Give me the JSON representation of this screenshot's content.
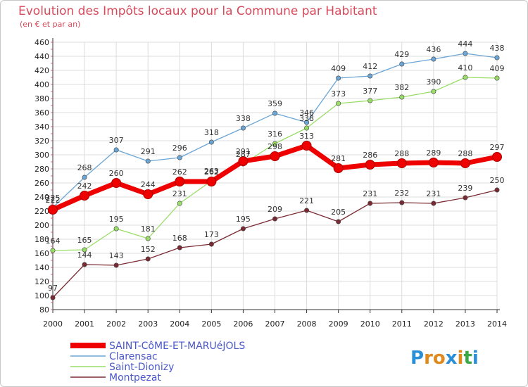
{
  "header": {
    "title": "Evolution des Impôts locaux pour la Commune par Habitant",
    "subtitle": "(en € et par an)"
  },
  "logo": {
    "text": "Proxiti",
    "letters": [
      "P",
      "r",
      "o",
      "x",
      "i",
      "t",
      "i"
    ],
    "colors": [
      "#2a8fd6",
      "#e08a1e",
      "#e08a1e",
      "#2a8fd6",
      "#e08a1e",
      "#3aa845",
      "#2a8fd6"
    ]
  },
  "chart_data": {
    "type": "line",
    "title": "Evolution des Impôts locaux pour la Commune par Habitant",
    "subtitle": "(en € et par an)",
    "xlabel": "",
    "ylabel": "",
    "x": [
      "2000",
      "2001",
      "2002",
      "2003",
      "2004",
      "2005",
      "2006",
      "2007",
      "2008",
      "2009",
      "2010",
      "2011",
      "2012",
      "2013",
      "2014"
    ],
    "ylim": [
      80,
      460
    ],
    "yticks": [
      80,
      100,
      120,
      140,
      160,
      180,
      200,
      220,
      240,
      260,
      280,
      300,
      320,
      340,
      360,
      380,
      400,
      420,
      440,
      460
    ],
    "grid": true,
    "legend_position": "bottom-left",
    "series": [
      {
        "name": "SAINT-CôME-ET-MARUéJOLS",
        "color": "#ee0000",
        "values": [
          222,
          242,
          260,
          244,
          262,
          262,
          291,
          298,
          313,
          281,
          286,
          288,
          289,
          288,
          297
        ]
      },
      {
        "name": "Clarensac",
        "color": "#6ba6d6",
        "values": [
          225,
          268,
          307,
          291,
          296,
          318,
          338,
          359,
          346,
          409,
          412,
          429,
          436,
          444,
          438
        ]
      },
      {
        "name": "Saint-Dionizy",
        "color": "#99dd66",
        "values": [
          164,
          165,
          195,
          181,
          231,
          263,
          287,
          316,
          338,
          373,
          377,
          382,
          390,
          410,
          409
        ]
      },
      {
        "name": "Montpezat",
        "color": "#7a2a32",
        "values": [
          97,
          144,
          143,
          152,
          168,
          173,
          195,
          209,
          221,
          205,
          231,
          232,
          231,
          239,
          250
        ]
      }
    ]
  }
}
